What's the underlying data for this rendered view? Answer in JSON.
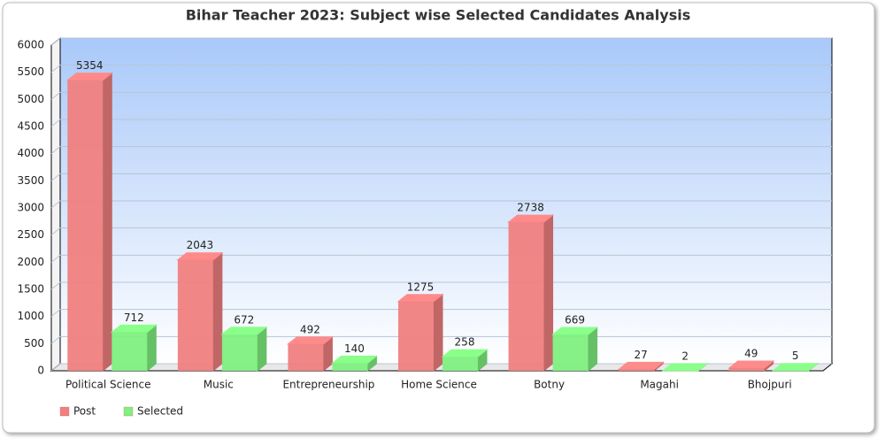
{
  "chart_data": {
    "type": "bar3d",
    "title": "Bihar Teacher 2023: Subject wise Selected Candidates Analysis",
    "categories": [
      "Political Science",
      "Music",
      "Entrepreneurship",
      "Home Science",
      "Botny",
      "Magahi",
      "Bhojpuri"
    ],
    "series": [
      {
        "name": "Post",
        "color": "#f08080",
        "values": [
          5354,
          2043,
          492,
          1275,
          2738,
          27,
          49
        ]
      },
      {
        "name": "Selected",
        "color": "#80f080",
        "values": [
          712,
          672,
          140,
          258,
          669,
          2,
          5
        ]
      }
    ],
    "ylim": [
      0,
      6000
    ],
    "yticks": [
      0,
      500,
      1000,
      1500,
      2000,
      2500,
      3000,
      3500,
      4000,
      4500,
      5000,
      5500,
      6000
    ],
    "grid": true,
    "legend": "bottom-left",
    "value_labels_shown": true
  }
}
